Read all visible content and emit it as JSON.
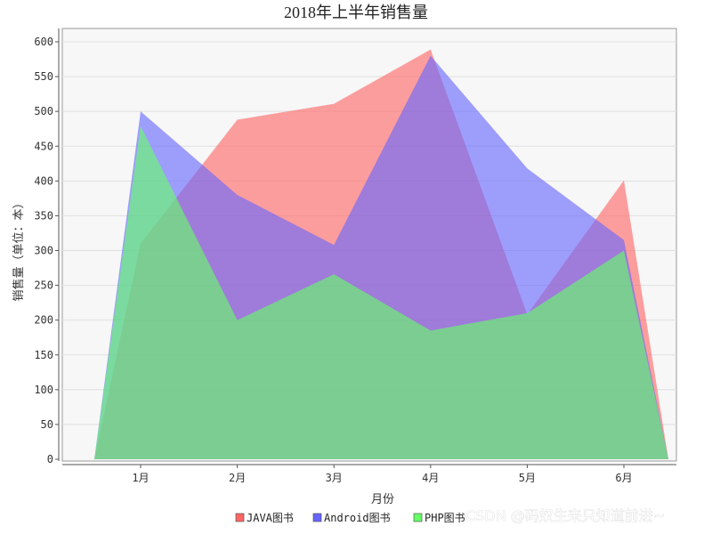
{
  "chart_data": {
    "type": "area",
    "title": "2018年上半年销售量",
    "xlabel": "月份",
    "ylabel": "销售量（单位：本）",
    "categories": [
      "1月",
      "2月",
      "3月",
      "4月",
      "5月",
      "6月"
    ],
    "ylim": [
      0,
      600
    ],
    "y_ticks": [
      0,
      50,
      100,
      150,
      200,
      250,
      300,
      350,
      400,
      450,
      500,
      550,
      600
    ],
    "grid": true,
    "legend_position": "bottom",
    "series": [
      {
        "name": "JAVA图书",
        "color": "#ff6666",
        "values": [
          310,
          488,
          511,
          589,
          208,
          401
        ]
      },
      {
        "name": "Android图书",
        "color": "#6666ff",
        "values": [
          500,
          380,
          308,
          580,
          418,
          315
        ]
      },
      {
        "name": "PHP图书",
        "color": "#66ff66",
        "values": [
          479,
          200,
          266,
          185,
          210,
          300
        ]
      }
    ]
  },
  "watermark": "CSDN @码奴生来只知道前进~"
}
